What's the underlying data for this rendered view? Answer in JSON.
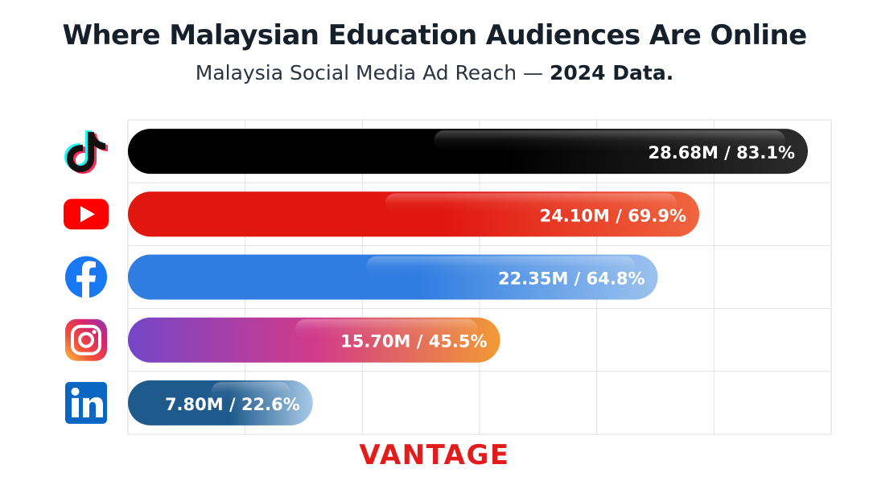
{
  "title": "Where Malaysian Education Audiences Are Online",
  "subtitle": {
    "prefix": "Malaysia Social Media Ad Reach — ",
    "emphasis": "2024 Data."
  },
  "brand": "VANTAGE",
  "icons": [
    "tiktok-icon",
    "youtube-icon",
    "facebook-icon",
    "instagram-icon",
    "linkedin-icon"
  ],
  "chart_data": {
    "type": "bar",
    "orientation": "horizontal",
    "categories": [
      "TikTok",
      "YouTube",
      "Facebook",
      "Instagram",
      "LinkedIn"
    ],
    "values": [
      28.68,
      24.1,
      22.35,
      15.7,
      7.8
    ],
    "percent_values": [
      83.1,
      69.9,
      64.8,
      45.5,
      22.6
    ],
    "unit": "M",
    "data_labels": [
      "28.68M / 83.1%",
      "24.10M / 69.9%",
      "22.35M / 64.8%",
      "15.70M / 45.5%",
      "7.80M / 22.6%"
    ],
    "xlim": [
      0,
      29.4
    ],
    "grid": true,
    "legend": "none",
    "bar_colors": [
      [
        "#000000",
        "#2b2b2b"
      ],
      [
        "#e0160f",
        "#f0653f"
      ],
      [
        "#2f7de1",
        "#9cc2ee"
      ],
      [
        "#7446c8",
        "#f29a35"
      ],
      [
        "#1f5a8c",
        "#a9cbe8"
      ]
    ]
  }
}
